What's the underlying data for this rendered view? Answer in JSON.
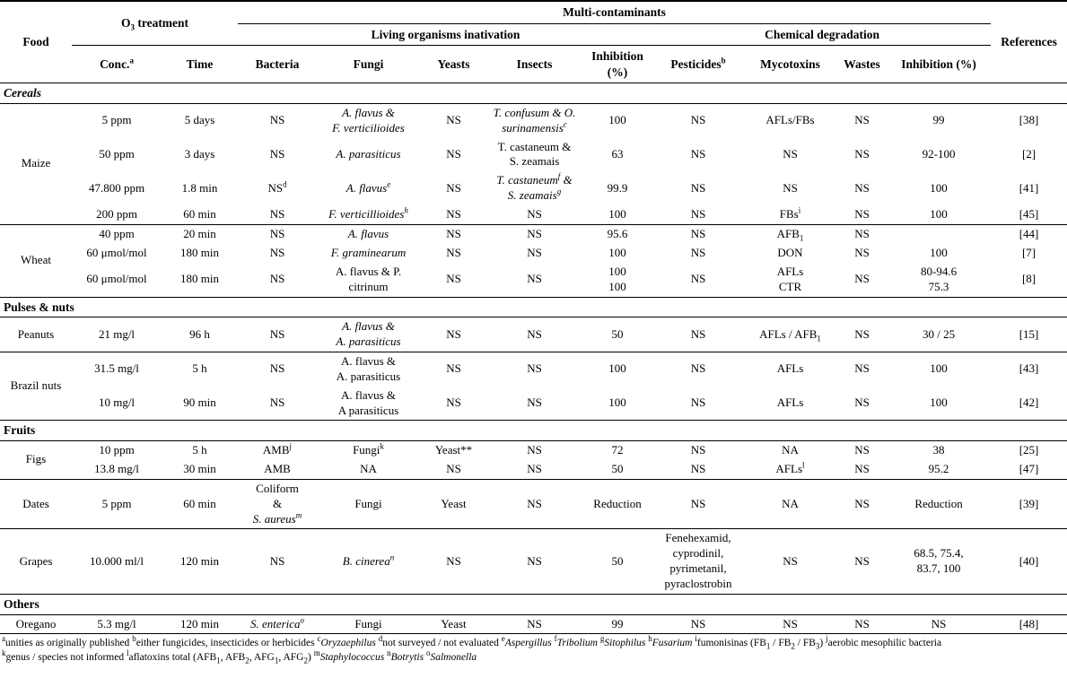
{
  "header": {
    "food": "Food",
    "o3_treatment": "O~3~ treatment",
    "multi_contaminants": "Multi-contaminants",
    "living": "Living organisms inativation",
    "chemical": "Chemical degradation",
    "references": "References",
    "cols": [
      "Conc.^a^",
      "Time",
      "Bacteria",
      "Fungi",
      "Yeasts",
      "Insects",
      "Inhibition\n(%)",
      "Pesticides^b^",
      "Mycotoxins",
      "Wastes",
      "Inhibition (%)"
    ]
  },
  "sections": [
    {
      "label": "*Cereals*",
      "groups": [
        {
          "food": "Maize",
          "rows": [
            [
              "5 ppm",
              "5 days",
              "NS",
              "*A. flavus &\nF. verticilioides*",
              "NS",
              "*T. confusum & O.\nsurinamensis^c^*",
              "100",
              "NS",
              "AFLs/FBs",
              "NS",
              "99",
              "[38]"
            ],
            [
              "50 ppm",
              "3 days",
              "NS",
              "*A. parasiticus*",
              "NS",
              "T. castaneum &\nS. zeamais",
              "63",
              "NS",
              "NS",
              "NS",
              "92-100",
              "[2]"
            ],
            [
              "47.800 ppm",
              "1.8 min",
              "NS^d^",
              "*A. flavus^e^*",
              "NS",
              "*T. castaneum^f^ &\nS. zeamais^g^*",
              "99.9",
              "NS",
              "NS",
              "NS",
              "100",
              "[41]"
            ],
            [
              "200 ppm",
              "60 min",
              "NS",
              "*F. verticillioides^h^*",
              "NS",
              "NS",
              "100",
              "NS",
              "FBs^i^",
              "NS",
              "100",
              "[45]"
            ]
          ]
        },
        {
          "food": "Wheat",
          "rows": [
            [
              "40 ppm",
              "20 min",
              "NS",
              "*A. flavus*",
              "NS",
              "NS",
              "95.6",
              "NS",
              "AFB~1~",
              "NS",
              "",
              "[44]"
            ],
            [
              "60 μmol/mol",
              "180 min",
              "NS",
              "*F. graminearum*",
              "NS",
              "NS",
              "100",
              "NS",
              "DON",
              "NS",
              "100",
              "[7]"
            ],
            [
              "60 μmol/mol",
              "180 min",
              "NS",
              "A. flavus & P.\ncitrinum",
              "NS",
              "NS",
              "100\n100",
              "NS",
              "AFLs\nCTR",
              "NS",
              "80-94.6\n75.3",
              "[8]"
            ]
          ]
        }
      ]
    },
    {
      "label": "Pulses & nuts",
      "groups": [
        {
          "food": "Peanuts",
          "rows": [
            [
              "21 mg/l",
              "96 h",
              "NS",
              "*A. flavus &\nA. parasiticus*",
              "NS",
              "NS",
              "50",
              "NS",
              "AFLs / AFB~1~",
              "NS",
              "30 / 25",
              "[15]"
            ]
          ]
        },
        {
          "food": "Brazil nuts",
          "rows": [
            [
              "31.5 mg/l",
              "5 h",
              "NS",
              "A. flavus &\nA. parasiticus",
              "NS",
              "NS",
              "100",
              "NS",
              "AFLs",
              "NS",
              "100",
              "[43]"
            ],
            [
              "10 mg/l",
              "90 min",
              "NS",
              "A. flavus &\nA parasiticus",
              "NS",
              "NS",
              "100",
              "NS",
              "AFLs",
              "NS",
              "100",
              "[42]"
            ]
          ]
        }
      ]
    },
    {
      "label": "Fruits",
      "groups": [
        {
          "food": "Figs",
          "rows": [
            [
              "10 ppm",
              "5 h",
              "AMB^j^",
              "Fungi^k^",
              "Yeast**",
              "NS",
              "72",
              "NS",
              "NA",
              "NS",
              "38",
              "[25]"
            ],
            [
              "13.8 mg/l",
              "30 min",
              "AMB",
              "NA",
              "NS",
              "NS",
              "50",
              "NS",
              "AFLs^l^",
              "NS",
              "95.2",
              "[47]"
            ]
          ]
        },
        {
          "food": "Dates",
          "rows": [
            [
              "5 ppm",
              "60 min",
              "Coliform\n&\n*S. aureus^m^*",
              "Fungi",
              "Yeast",
              "NS",
              "Reduction",
              "NS",
              "NA",
              "NS",
              "Reduction",
              "[39]"
            ]
          ]
        },
        {
          "food": "Grapes",
          "rows": [
            [
              "10.000 ml/l",
              "120 min",
              "NS",
              "*B. cinerea^n^*",
              "NS",
              "NS",
              "50",
              "Fenehexamid,\ncyprodinil,\npyrimetanil,\npyraclostrobin",
              "NS",
              "NS",
              "68.5, 75.4,\n83.7, 100",
              "[40]"
            ]
          ]
        }
      ]
    },
    {
      "label": "Others",
      "groups": [
        {
          "food": "Oregano",
          "rows": [
            [
              "5.3 mg/l",
              "120 min",
              "*S. enterica^o^*",
              "Fungi",
              "Yeast",
              "NS",
              "99",
              "NS",
              "NS",
              "NS",
              "NS",
              "[48]"
            ]
          ]
        }
      ]
    }
  ],
  "footnotes": [
    "^a^unities as originally published ^b^either fungicides, insecticides or herbicides ^c^*Oryzaephilus* ^d^not surveyed / not evaluated ^e^*Aspergillus* ^f^*Tribolium* ^g^*Sitophilus* ^h^*Fusarium* ^i^fumonisinas (FB~1~ / FB~2~ / FB~3~) ^j^aerobic mesophilic bacteria",
    "^k^genus / species not informed ^l^aflatoxins total (AFB~1~, AFB~2~, AFG~1~, AFG~2~) ^m^*Staphylococcus* ^n^*Botrytis* ^o^*Salmonella*"
  ]
}
